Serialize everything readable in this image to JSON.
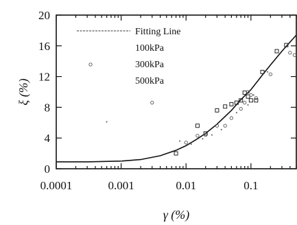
{
  "chart_data": {
    "type": "scatter",
    "xlabel": "γ (%)",
    "ylabel": "ξ (%)",
    "xscale": "log",
    "xlim": [
      0.0001,
      0.5
    ],
    "ylim": [
      0,
      20
    ],
    "xticks": [
      {
        "value": 0.0001,
        "label": "0.0001"
      },
      {
        "value": 0.001,
        "label": "0.001"
      },
      {
        "value": 0.01,
        "label": "0.01"
      },
      {
        "value": 0.1,
        "label": "0.1"
      }
    ],
    "yticks": [
      {
        "value": 0,
        "label": "0"
      },
      {
        "value": 4,
        "label": "4"
      },
      {
        "value": 8,
        "label": "8"
      },
      {
        "value": 12,
        "label": "12"
      },
      {
        "value": 16,
        "label": "16"
      },
      {
        "value": 20,
        "label": "20"
      }
    ],
    "grid": false,
    "legend_position": "top-left",
    "legend": [
      "Fitting Line",
      "100kPa",
      "300kPa",
      "500kPa"
    ],
    "series": [
      {
        "name": "Fitting Line",
        "kind": "line",
        "x": [
          0.0001,
          0.0003,
          0.001,
          0.002,
          0.004,
          0.007,
          0.01,
          0.015,
          0.02,
          0.03,
          0.05,
          0.07,
          0.1,
          0.15,
          0.2,
          0.3,
          0.5
        ],
        "y": [
          0.9,
          0.9,
          1.0,
          1.2,
          1.7,
          2.4,
          3.0,
          3.9,
          4.6,
          5.8,
          7.6,
          9.0,
          10.3,
          12.2,
          13.5,
          15.3,
          17.4
        ]
      },
      {
        "name": "100kPa",
        "marker": "square",
        "x": [
          0.007,
          0.015,
          0.02,
          0.03,
          0.04,
          0.05,
          0.06,
          0.07,
          0.08,
          0.09,
          0.1,
          0.12,
          0.15,
          0.25,
          0.35
        ],
        "y": [
          2.0,
          5.6,
          4.6,
          7.6,
          8.1,
          8.4,
          8.6,
          8.9,
          9.9,
          9.4,
          8.9,
          8.9,
          12.6,
          15.3,
          16.1
        ]
      },
      {
        "name": "300kPa",
        "marker": "circle",
        "x": [
          0.003,
          0.01,
          0.015,
          0.02,
          0.03,
          0.04,
          0.05,
          0.07,
          0.08,
          0.09,
          0.1,
          0.12,
          0.2,
          0.4,
          0.47
        ],
        "y": [
          8.6,
          3.4,
          4.3,
          4.4,
          5.6,
          5.6,
          6.6,
          7.8,
          8.6,
          10.0,
          9.6,
          9.2,
          12.3,
          15.1,
          14.8
        ]
      },
      {
        "name": "500kPa",
        "marker": "dot",
        "x": [
          0.0006,
          0.001,
          0.008,
          0.012,
          0.018,
          0.025,
          0.035,
          0.06,
          0.09,
          0.11,
          0.18
        ],
        "y": [
          6.1,
          1.0,
          3.6,
          3.2,
          3.9,
          4.4,
          5.1,
          7.3,
          8.3,
          9.6,
          12.6
        ]
      }
    ]
  }
}
